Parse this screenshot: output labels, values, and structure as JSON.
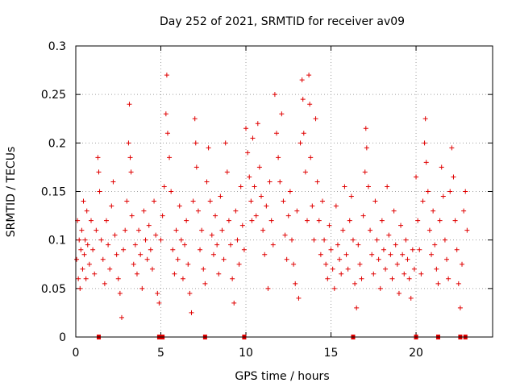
{
  "chart_data": {
    "type": "scatter",
    "title": "Day 252 of 2021, SRMTID for receiver av09",
    "xlabel": "GPS time / hours",
    "ylabel": "SRMTID / TECUs",
    "xlim": [
      0,
      24.5
    ],
    "ylim": [
      0,
      0.3
    ],
    "x_ticks": [
      0,
      5,
      10,
      15,
      20
    ],
    "x_tick_labels": [
      "0",
      "5",
      "10",
      "15",
      "20"
    ],
    "y_ticks": [
      0,
      0.05,
      0.1,
      0.15,
      0.2,
      0.25,
      0.3
    ],
    "y_tick_labels": [
      "0",
      "0.05",
      "0.1",
      "0.15",
      "0.2",
      "0.25",
      "0.3"
    ],
    "grid": true,
    "marker": "+",
    "color": "#e00000",
    "zero_value_times": [
      1.35,
      4.9,
      5.0,
      5.1,
      7.6,
      9.9,
      16.3,
      20.0,
      21.3,
      22.6,
      22.9
    ],
    "series": [
      {
        "name": "SRMTID",
        "points": [
          [
            0.05,
            0.08
          ],
          [
            0.1,
            0.12
          ],
          [
            0.15,
            0.06
          ],
          [
            0.2,
            0.1
          ],
          [
            0.25,
            0.05
          ],
          [
            0.3,
            0.09
          ],
          [
            0.35,
            0.11
          ],
          [
            0.4,
            0.07
          ],
          [
            0.45,
            0.14
          ],
          [
            0.5,
            0.085
          ],
          [
            0.55,
            0.1
          ],
          [
            0.6,
            0.06
          ],
          [
            0.65,
            0.13
          ],
          [
            0.7,
            0.095
          ],
          [
            0.8,
            0.075
          ],
          [
            0.9,
            0.12
          ],
          [
            1.0,
            0.09
          ],
          [
            1.1,
            0.065
          ],
          [
            1.2,
            0.11
          ],
          [
            1.3,
            0.185
          ],
          [
            1.35,
            0.17
          ],
          [
            1.4,
            0.15
          ],
          [
            1.5,
            0.1
          ],
          [
            1.6,
            0.08
          ],
          [
            1.7,
            0.055
          ],
          [
            1.8,
            0.12
          ],
          [
            1.9,
            0.095
          ],
          [
            2.0,
            0.07
          ],
          [
            2.1,
            0.135
          ],
          [
            2.2,
            0.16
          ],
          [
            2.3,
            0.105
          ],
          [
            2.4,
            0.085
          ],
          [
            2.5,
            0.06
          ],
          [
            2.6,
            0.045
          ],
          [
            2.7,
            0.02
          ],
          [
            2.8,
            0.09
          ],
          [
            2.9,
            0.11
          ],
          [
            3.0,
            0.14
          ],
          [
            3.1,
            0.2
          ],
          [
            3.15,
            0.24
          ],
          [
            3.2,
            0.185
          ],
          [
            3.25,
            0.17
          ],
          [
            3.3,
            0.125
          ],
          [
            3.4,
            0.075
          ],
          [
            3.5,
            0.095
          ],
          [
            3.6,
            0.065
          ],
          [
            3.7,
            0.11
          ],
          [
            3.8,
            0.085
          ],
          [
            3.9,
            0.05
          ],
          [
            4.0,
            0.13
          ],
          [
            4.1,
            0.1
          ],
          [
            4.2,
            0.08
          ],
          [
            4.3,
            0.115
          ],
          [
            4.4,
            0.09
          ],
          [
            4.5,
            0.07
          ],
          [
            4.6,
            0.14
          ],
          [
            4.7,
            0.105
          ],
          [
            4.8,
            0.045
          ],
          [
            4.9,
            0.035
          ],
          [
            5.0,
            0.1
          ],
          [
            5.1,
            0.125
          ],
          [
            5.2,
            0.155
          ],
          [
            5.3,
            0.23
          ],
          [
            5.35,
            0.27
          ],
          [
            5.4,
            0.21
          ],
          [
            5.5,
            0.185
          ],
          [
            5.6,
            0.15
          ],
          [
            5.7,
            0.09
          ],
          [
            5.8,
            0.065
          ],
          [
            5.9,
            0.11
          ],
          [
            6.0,
            0.08
          ],
          [
            6.1,
            0.135
          ],
          [
            6.2,
            0.1
          ],
          [
            6.3,
            0.06
          ],
          [
            6.4,
            0.095
          ],
          [
            6.5,
            0.12
          ],
          [
            6.6,
            0.075
          ],
          [
            6.7,
            0.045
          ],
          [
            6.8,
            0.025
          ],
          [
            6.9,
            0.14
          ],
          [
            7.0,
            0.225
          ],
          [
            7.05,
            0.2
          ],
          [
            7.1,
            0.175
          ],
          [
            7.2,
            0.13
          ],
          [
            7.3,
            0.09
          ],
          [
            7.4,
            0.11
          ],
          [
            7.5,
            0.07
          ],
          [
            7.6,
            0.055
          ],
          [
            7.7,
            0.16
          ],
          [
            7.8,
            0.195
          ],
          [
            7.9,
            0.14
          ],
          [
            8.0,
            0.105
          ],
          [
            8.1,
            0.085
          ],
          [
            8.2,
            0.125
          ],
          [
            8.3,
            0.095
          ],
          [
            8.4,
            0.065
          ],
          [
            8.5,
            0.145
          ],
          [
            8.6,
            0.11
          ],
          [
            8.7,
            0.08
          ],
          [
            8.8,
            0.2
          ],
          [
            8.9,
            0.17
          ],
          [
            9.0,
            0.12
          ],
          [
            9.1,
            0.095
          ],
          [
            9.2,
            0.06
          ],
          [
            9.3,
            0.035
          ],
          [
            9.4,
            0.13
          ],
          [
            9.5,
            0.1
          ],
          [
            9.6,
            0.075
          ],
          [
            9.7,
            0.155
          ],
          [
            9.8,
            0.115
          ],
          [
            9.9,
            0.09
          ],
          [
            10.0,
            0.215
          ],
          [
            10.1,
            0.19
          ],
          [
            10.2,
            0.165
          ],
          [
            10.3,
            0.14
          ],
          [
            10.35,
            0.12
          ],
          [
            10.4,
            0.205
          ],
          [
            10.5,
            0.155
          ],
          [
            10.6,
            0.125
          ],
          [
            10.7,
            0.22
          ],
          [
            10.8,
            0.175
          ],
          [
            10.9,
            0.145
          ],
          [
            11.0,
            0.11
          ],
          [
            11.1,
            0.085
          ],
          [
            11.2,
            0.135
          ],
          [
            11.3,
            0.05
          ],
          [
            11.4,
            0.16
          ],
          [
            11.5,
            0.12
          ],
          [
            11.6,
            0.095
          ],
          [
            11.7,
            0.25
          ],
          [
            11.8,
            0.21
          ],
          [
            11.9,
            0.185
          ],
          [
            12.0,
            0.16
          ],
          [
            12.1,
            0.23
          ],
          [
            12.2,
            0.14
          ],
          [
            12.3,
            0.105
          ],
          [
            12.4,
            0.08
          ],
          [
            12.5,
            0.125
          ],
          [
            12.6,
            0.15
          ],
          [
            12.7,
            0.1
          ],
          [
            12.8,
            0.075
          ],
          [
            12.9,
            0.055
          ],
          [
            13.0,
            0.13
          ],
          [
            13.1,
            0.04
          ],
          [
            13.2,
            0.2
          ],
          [
            13.3,
            0.265
          ],
          [
            13.35,
            0.245
          ],
          [
            13.4,
            0.21
          ],
          [
            13.5,
            0.17
          ],
          [
            13.6,
            0.12
          ],
          [
            13.7,
            0.27
          ],
          [
            13.75,
            0.24
          ],
          [
            13.8,
            0.185
          ],
          [
            13.9,
            0.135
          ],
          [
            14.0,
            0.1
          ],
          [
            14.1,
            0.225
          ],
          [
            14.2,
            0.16
          ],
          [
            14.3,
            0.12
          ],
          [
            14.4,
            0.085
          ],
          [
            14.5,
            0.14
          ],
          [
            14.6,
            0.1
          ],
          [
            14.7,
            0.075
          ],
          [
            14.8,
            0.06
          ],
          [
            14.9,
            0.115
          ],
          [
            15.0,
            0.09
          ],
          [
            15.1,
            0.07
          ],
          [
            15.2,
            0.05
          ],
          [
            15.3,
            0.135
          ],
          [
            15.4,
            0.095
          ],
          [
            15.5,
            0.08
          ],
          [
            15.6,
            0.065
          ],
          [
            15.7,
            0.11
          ],
          [
            15.8,
            0.155
          ],
          [
            15.9,
            0.085
          ],
          [
            16.0,
            0.07
          ],
          [
            16.1,
            0.12
          ],
          [
            16.2,
            0.145
          ],
          [
            16.3,
            0.1
          ],
          [
            16.4,
            0.055
          ],
          [
            16.5,
            0.03
          ],
          [
            16.6,
            0.095
          ],
          [
            16.7,
            0.075
          ],
          [
            16.8,
            0.06
          ],
          [
            16.9,
            0.125
          ],
          [
            17.0,
            0.17
          ],
          [
            17.05,
            0.215
          ],
          [
            17.1,
            0.195
          ],
          [
            17.2,
            0.155
          ],
          [
            17.3,
            0.11
          ],
          [
            17.4,
            0.085
          ],
          [
            17.5,
            0.065
          ],
          [
            17.6,
            0.14
          ],
          [
            17.7,
            0.1
          ],
          [
            17.8,
            0.08
          ],
          [
            17.9,
            0.05
          ],
          [
            18.0,
            0.12
          ],
          [
            18.1,
            0.09
          ],
          [
            18.2,
            0.07
          ],
          [
            18.3,
            0.155
          ],
          [
            18.4,
            0.105
          ],
          [
            18.5,
            0.085
          ],
          [
            18.6,
            0.06
          ],
          [
            18.7,
            0.13
          ],
          [
            18.8,
            0.095
          ],
          [
            18.9,
            0.075
          ],
          [
            19.0,
            0.045
          ],
          [
            19.1,
            0.115
          ],
          [
            19.2,
            0.085
          ],
          [
            19.3,
            0.065
          ],
          [
            19.4,
            0.1
          ],
          [
            19.5,
            0.08
          ],
          [
            19.6,
            0.06
          ],
          [
            19.7,
            0.04
          ],
          [
            19.8,
            0.09
          ],
          [
            19.9,
            0.07
          ],
          [
            20.0,
            0.165
          ],
          [
            20.1,
            0.12
          ],
          [
            20.2,
            0.09
          ],
          [
            20.3,
            0.065
          ],
          [
            20.4,
            0.14
          ],
          [
            20.5,
            0.2
          ],
          [
            20.55,
            0.225
          ],
          [
            20.6,
            0.18
          ],
          [
            20.7,
            0.15
          ],
          [
            20.8,
            0.11
          ],
          [
            20.9,
            0.085
          ],
          [
            21.0,
            0.13
          ],
          [
            21.1,
            0.095
          ],
          [
            21.2,
            0.07
          ],
          [
            21.3,
            0.055
          ],
          [
            21.4,
            0.12
          ],
          [
            21.5,
            0.175
          ],
          [
            21.6,
            0.145
          ],
          [
            21.7,
            0.1
          ],
          [
            21.8,
            0.08
          ],
          [
            21.9,
            0.06
          ],
          [
            22.0,
            0.15
          ],
          [
            22.1,
            0.195
          ],
          [
            22.2,
            0.165
          ],
          [
            22.3,
            0.12
          ],
          [
            22.4,
            0.09
          ],
          [
            22.5,
            0.055
          ],
          [
            22.6,
            0.03
          ],
          [
            22.7,
            0.075
          ],
          [
            22.8,
            0.13
          ],
          [
            22.9,
            0.15
          ],
          [
            23.0,
            0.11
          ]
        ]
      }
    ]
  }
}
